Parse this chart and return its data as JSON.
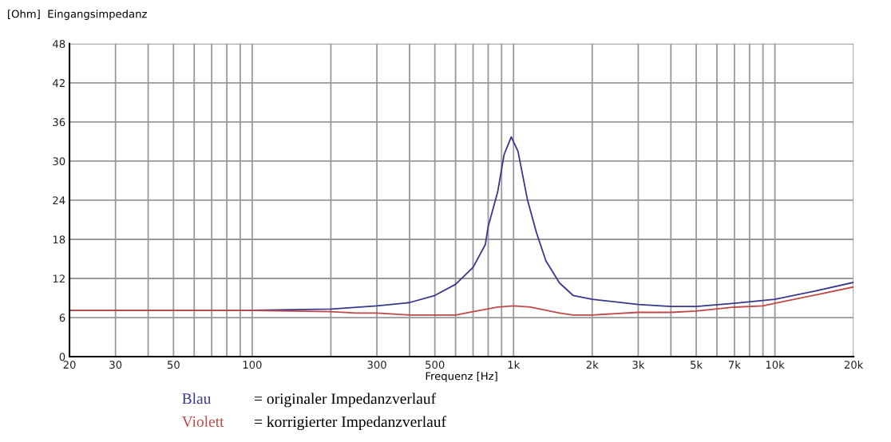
{
  "chart_data": {
    "type": "line",
    "ylabel": "[Ohm]  Eingangsimpedanz",
    "xlabel": "Frequenz [Hz]",
    "log": "x",
    "grid": true,
    "legend": "bottom",
    "marker": "none",
    "line_style": "solid",
    "xlim": [
      20,
      20000
    ],
    "ylim": [
      0,
      48
    ],
    "xticks": [
      {
        "value": 20,
        "label": "20"
      },
      {
        "value": 30,
        "label": "30"
      },
      {
        "value": 40,
        "label": null
      },
      {
        "value": 50,
        "label": "50"
      },
      {
        "value": 60,
        "label": null
      },
      {
        "value": 70,
        "label": null
      },
      {
        "value": 80,
        "label": null
      },
      {
        "value": 90,
        "label": null
      },
      {
        "value": 100,
        "label": "100"
      },
      {
        "value": 200,
        "label": null
      },
      {
        "value": 300,
        "label": "300"
      },
      {
        "value": 400,
        "label": null
      },
      {
        "value": 500,
        "label": "500"
      },
      {
        "value": 600,
        "label": null
      },
      {
        "value": 700,
        "label": null
      },
      {
        "value": 800,
        "label": null
      },
      {
        "value": 900,
        "label": null
      },
      {
        "value": 1000,
        "label": "1k"
      },
      {
        "value": 2000,
        "label": "2k"
      },
      {
        "value": 3000,
        "label": "3k"
      },
      {
        "value": 4000,
        "label": null
      },
      {
        "value": 5000,
        "label": "5k"
      },
      {
        "value": 6000,
        "label": null
      },
      {
        "value": 7000,
        "label": "7k"
      },
      {
        "value": 8000,
        "label": null
      },
      {
        "value": 9000,
        "label": null
      },
      {
        "value": 10000,
        "label": "10k"
      },
      {
        "value": 20000,
        "label": "20k"
      }
    ],
    "yticks": [
      0,
      6,
      12,
      18,
      24,
      30,
      36,
      42,
      48
    ],
    "series": [
      {
        "name": "Blau",
        "color": "#38388c",
        "x": [
          20,
          50,
          91,
          200,
          300,
          400,
          500,
          600,
          700,
          780,
          800,
          870,
          920,
          980,
          1040,
          1130,
          1220,
          1330,
          1500,
          1690,
          2000,
          3000,
          4000,
          5000,
          7000,
          10000,
          14000,
          20000
        ],
        "values": [
          7.1,
          7.1,
          7.1,
          7.3,
          7.8,
          8.3,
          9.4,
          11.1,
          13.7,
          17.2,
          20.0,
          25.3,
          31.0,
          33.7,
          31.5,
          24.1,
          19.2,
          14.7,
          11.3,
          9.4,
          8.8,
          8.0,
          7.7,
          7.7,
          8.2,
          8.8,
          10.0,
          11.4
        ]
      },
      {
        "name": "Violett",
        "color": "#c04848",
        "x": [
          20,
          50,
          100,
          200,
          250,
          300,
          400,
          600,
          700,
          870,
          1000,
          1160,
          1500,
          1690,
          2000,
          3000,
          4000,
          5000,
          7000,
          9000,
          10000,
          14000,
          20000
        ],
        "values": [
          7.1,
          7.1,
          7.1,
          6.9,
          6.7,
          6.7,
          6.4,
          6.4,
          6.9,
          7.6,
          7.8,
          7.6,
          6.7,
          6.4,
          6.4,
          6.8,
          6.8,
          7.0,
          7.6,
          7.8,
          8.2,
          9.4,
          10.7
        ]
      }
    ],
    "annotations": [
      "= originaler Impedanzverlauf",
      "= korrigierter Impedanzverlauf"
    ]
  }
}
